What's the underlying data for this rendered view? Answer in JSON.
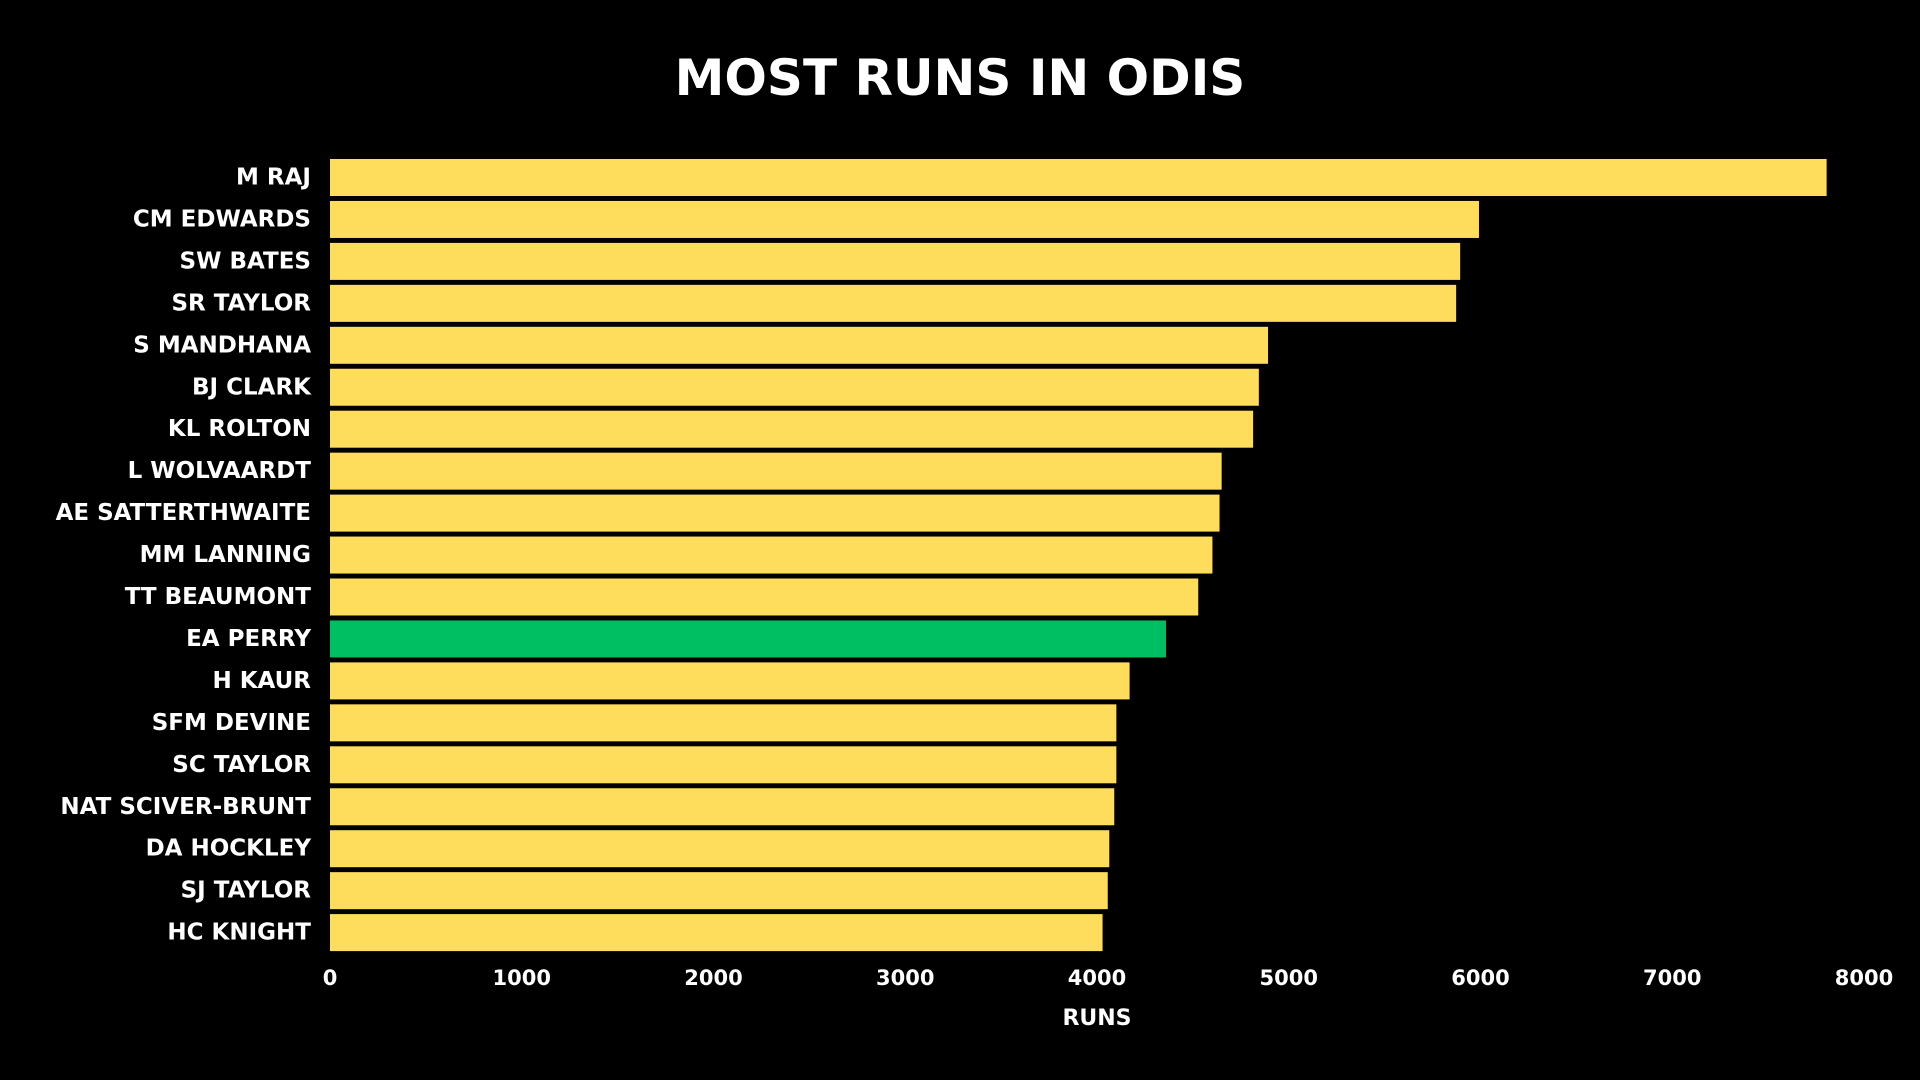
{
  "chart_data": {
    "type": "bar",
    "orientation": "horizontal",
    "title": "MOST RUNS IN ODIS",
    "xlabel": "RUNS",
    "ylabel": "",
    "xlim": [
      0,
      8000
    ],
    "x_ticks": [
      0,
      1000,
      2000,
      3000,
      4000,
      5000,
      6000,
      7000,
      8000
    ],
    "grid": false,
    "legend": "none",
    "colors": {
      "background": "#000000",
      "bar": "#FFDD5C",
      "highlight": "#00BF63",
      "text": "#FFFFFF"
    },
    "highlight_category": "EA PERRY",
    "categories": [
      "M RAJ",
      "CM EDWARDS",
      "SW BATES",
      "SR TAYLOR",
      "S MANDHANA",
      "BJ CLARK",
      "KL ROLTON",
      "L WOLVAARDT",
      "AE SATTERTHWAITE",
      "MM LANNING",
      "TT BEAUMONT",
      "EA PERRY",
      "H KAUR",
      "SFM DEVINE",
      "SC TAYLOR",
      "NAT SCIVER-BRUNT",
      "DA HOCKLEY",
      "SJ TAYLOR",
      "HC KNIGHT"
    ],
    "values": [
      7805,
      5992,
      5894,
      5873,
      4892,
      4844,
      4814,
      4650,
      4639,
      4602,
      4528,
      4360,
      4170,
      4101,
      4101,
      4090,
      4064,
      4056,
      4029
    ]
  }
}
